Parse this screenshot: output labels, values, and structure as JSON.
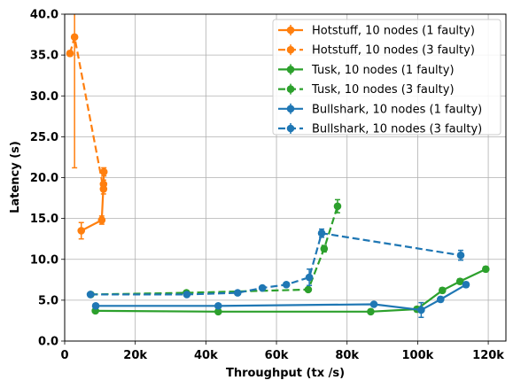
{
  "chart_data": {
    "type": "line",
    "xlabel": "Throughput (tx /s)",
    "ylabel": "Latency (s)",
    "xlim": [
      0,
      125000
    ],
    "ylim": [
      0,
      40
    ],
    "grid": true,
    "legend_position": "top-right",
    "xticks": [
      0,
      20000,
      40000,
      60000,
      80000,
      100000,
      120000
    ],
    "xtick_labels": [
      "0",
      "20k",
      "40k",
      "60k",
      "80k",
      "100k",
      "120k"
    ],
    "yticks": [
      0,
      5,
      10,
      15,
      20,
      25,
      30,
      35,
      40
    ],
    "ytick_labels": [
      "0.0",
      "5.0",
      "10.0",
      "15.0",
      "20.0",
      "25.0",
      "30.0",
      "35.0",
      "40.0"
    ],
    "series": [
      {
        "name": "Hotstuff, 10 nodes (1 faulty)",
        "color": "#ff7f0e",
        "style": "solid",
        "points": [
          {
            "x": 4700,
            "y": 13.5,
            "err": 1.0
          },
          {
            "x": 10500,
            "y": 14.8,
            "err": 0.5
          },
          {
            "x": 11000,
            "y": 19.2,
            "err": 0.5
          },
          {
            "x": 11100,
            "y": 20.7,
            "err": 0.5
          }
        ]
      },
      {
        "name": "Hotstuff, 10 nodes (3 faulty)",
        "color": "#ff7f0e",
        "style": "dashed",
        "points": [
          {
            "x": 1500,
            "y": 35.2,
            "err": 0.3
          },
          {
            "x": 2800,
            "y": 37.2,
            "err": 16.0
          },
          {
            "x": 11000,
            "y": 18.6,
            "err": 0.6
          }
        ]
      },
      {
        "name": "Tusk, 10 nodes (1 faulty)",
        "color": "#2ca02c",
        "style": "solid",
        "points": [
          {
            "x": 8700,
            "y": 3.7,
            "err": 0.2
          },
          {
            "x": 43500,
            "y": 3.6,
            "err": 0.2
          },
          {
            "x": 86700,
            "y": 3.6,
            "err": 0.2
          },
          {
            "x": 99800,
            "y": 3.9,
            "err": 0.3
          },
          {
            "x": 107000,
            "y": 6.2,
            "err": 0.3
          },
          {
            "x": 112000,
            "y": 7.3,
            "err": 0.3
          },
          {
            "x": 119300,
            "y": 8.8,
            "err": 0.3
          }
        ]
      },
      {
        "name": "Tusk, 10 nodes (3 faulty)",
        "color": "#2ca02c",
        "style": "dashed",
        "points": [
          {
            "x": 7400,
            "y": 5.7,
            "err": 0.2
          },
          {
            "x": 34500,
            "y": 5.9,
            "err": 0.2
          },
          {
            "x": 69000,
            "y": 6.3,
            "err": 0.2
          },
          {
            "x": 73500,
            "y": 11.3,
            "err": 0.4
          },
          {
            "x": 77300,
            "y": 16.5,
            "err": 0.8
          }
        ]
      },
      {
        "name": "Bullshark, 10 nodes (1 faulty)",
        "color": "#1f77b4",
        "style": "solid",
        "points": [
          {
            "x": 8800,
            "y": 4.3,
            "err": 0.2
          },
          {
            "x": 43500,
            "y": 4.3,
            "err": 0.2
          },
          {
            "x": 87600,
            "y": 4.5,
            "err": 0.2
          },
          {
            "x": 101000,
            "y": 3.8,
            "err": 0.9
          },
          {
            "x": 106500,
            "y": 5.1,
            "err": 0.3
          },
          {
            "x": 113700,
            "y": 6.9,
            "err": 0.3
          }
        ]
      },
      {
        "name": "Bullshark, 10 nodes (3 faulty)",
        "color": "#1f77b4",
        "style": "dashed",
        "points": [
          {
            "x": 7300,
            "y": 5.7,
            "err": 0.2
          },
          {
            "x": 34600,
            "y": 5.7,
            "err": 0.2
          },
          {
            "x": 49000,
            "y": 5.9,
            "err": 0.2
          },
          {
            "x": 56000,
            "y": 6.5,
            "err": 0.2
          },
          {
            "x": 62800,
            "y": 6.9,
            "err": 0.2
          },
          {
            "x": 69300,
            "y": 7.8,
            "err": 1.0
          },
          {
            "x": 72800,
            "y": 13.2,
            "err": 0.5
          },
          {
            "x": 112200,
            "y": 10.5,
            "err": 0.6
          }
        ]
      }
    ]
  }
}
